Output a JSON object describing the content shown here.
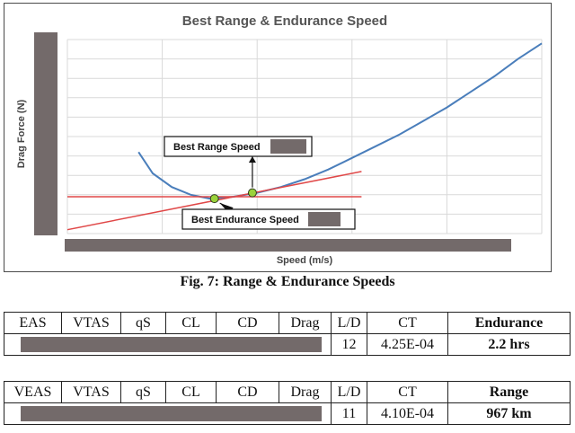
{
  "chart_data": {
    "type": "line",
    "title": "Best Range & Endurance Speed",
    "xlabel": "Speed (m/s)",
    "ylabel": "Drag Force (N)",
    "x_range": [
      0,
      1
    ],
    "y_range": [
      0,
      1
    ],
    "grid": true,
    "series": [
      {
        "x": [
          0.15,
          0.18,
          0.22,
          0.26,
          0.3,
          0.35,
          0.4,
          0.45,
          0.5,
          0.55,
          0.6,
          0.65,
          0.7,
          0.75,
          0.8,
          0.85,
          0.9,
          0.95,
          1.0
        ],
        "y": [
          0.42,
          0.31,
          0.24,
          0.2,
          0.18,
          0.19,
          0.21,
          0.24,
          0.28,
          0.33,
          0.39,
          0.45,
          0.51,
          0.58,
          0.65,
          0.73,
          0.81,
          0.9,
          0.98
        ],
        "color": "#4a7ebb"
      },
      {
        "x": [
          0.0,
          0.62
        ],
        "y": [
          0.02,
          0.32
        ],
        "color": "#e04848"
      },
      {
        "x": [
          0.0,
          0.62
        ],
        "y": [
          0.19,
          0.19
        ],
        "color": "#e04848"
      }
    ],
    "points": [
      {
        "x": 0.31,
        "y": 0.18,
        "color": "#9ad23a"
      },
      {
        "x": 0.39,
        "y": 0.21,
        "color": "#9ad23a"
      }
    ],
    "annotations": [
      {
        "text": "Best Range Speed",
        "points_to": "range"
      },
      {
        "text": "Best Endurance Speed",
        "points_to": "endurance"
      }
    ]
  },
  "caption": "Fig. 7: Range & Endurance Speeds",
  "endurance_table": {
    "headers": [
      "EAS",
      "VTAS",
      "qS",
      "CL",
      "CD",
      "Drag",
      "L/D",
      "CT",
      "Endurance"
    ],
    "ld": "12",
    "ct": "4.25E-04",
    "result": "2.2 hrs"
  },
  "range_table": {
    "headers": [
      "VEAS",
      "VTAS",
      "qS",
      "CL",
      "CD",
      "Drag",
      "L/D",
      "CT",
      "Range"
    ],
    "ld": "11",
    "ct": "4.10E-04",
    "result": "967 km"
  }
}
